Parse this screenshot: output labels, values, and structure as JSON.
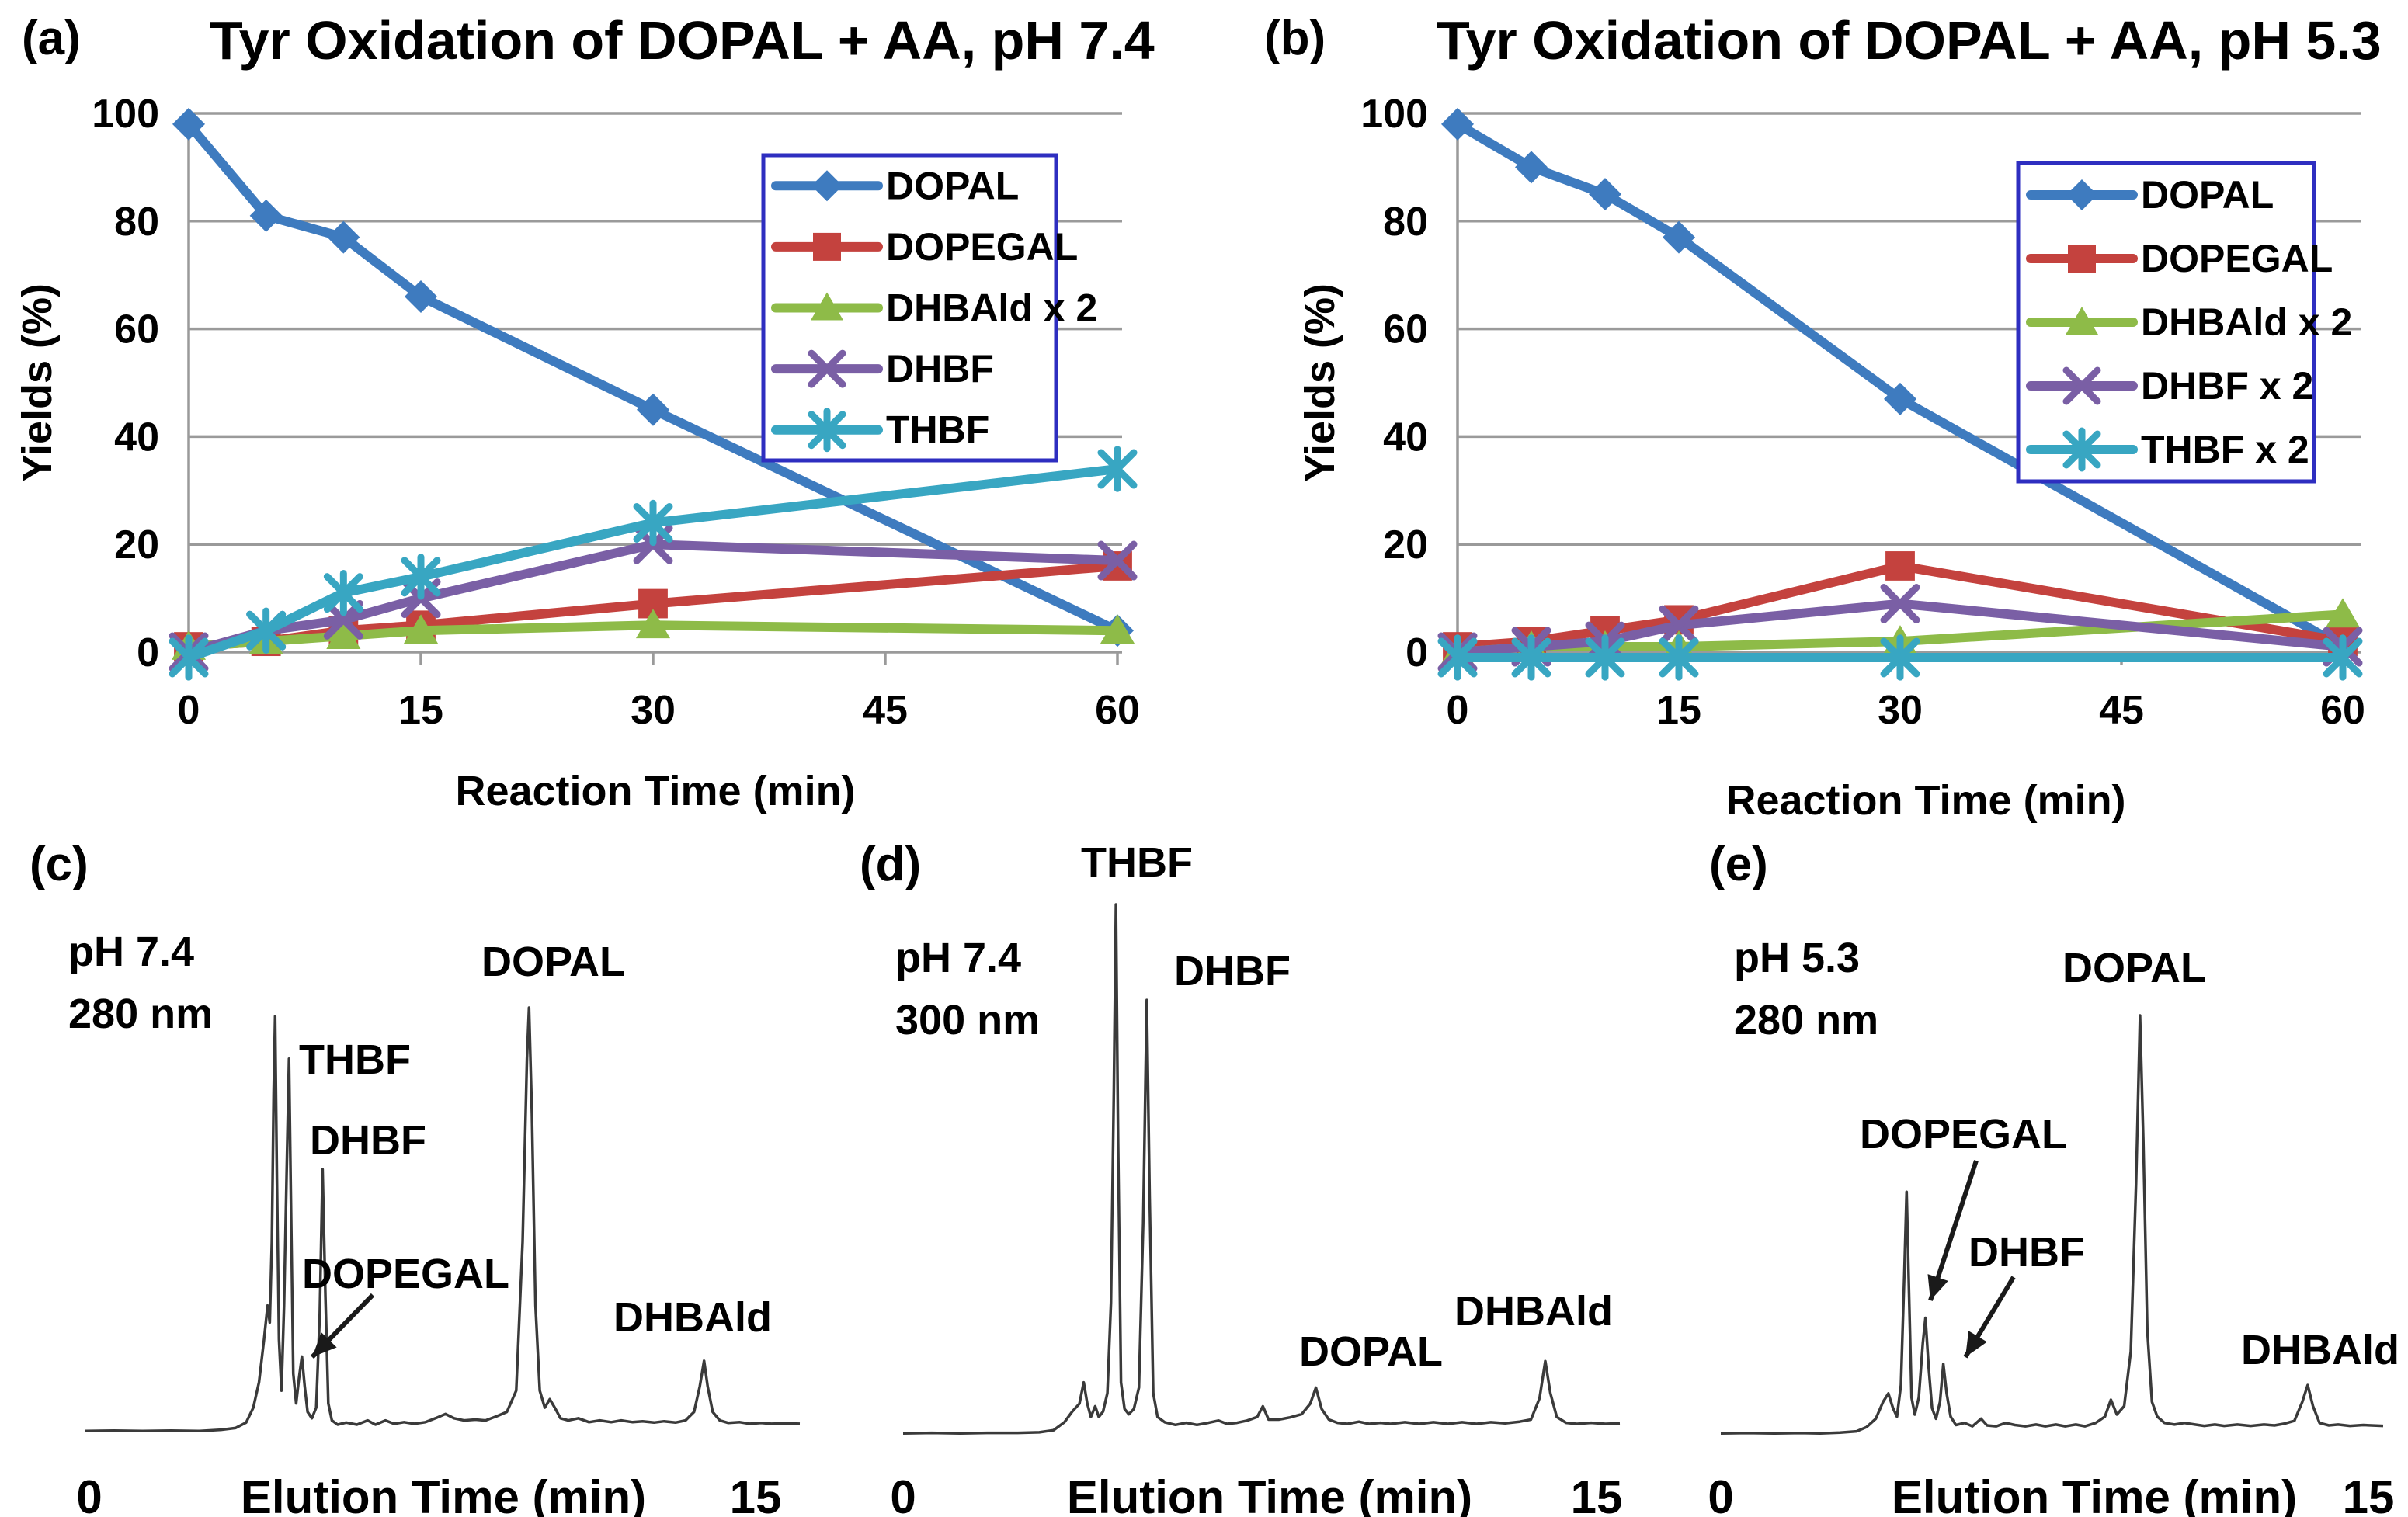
{
  "figure": {
    "panels": [
      {
        "id": "a",
        "label": "(a)"
      },
      {
        "id": "b",
        "label": "(b)"
      },
      {
        "id": "c",
        "label": "(c)"
      },
      {
        "id": "d",
        "label": "(d)"
      },
      {
        "id": "e",
        "label": "(e)"
      }
    ]
  },
  "colors": {
    "dopal_blue": "#3E7BBF",
    "dopegal_red": "#C4423E",
    "dhbald_green": "#8EBB48",
    "dhbf_purple": "#7A5FA5",
    "thbf_cyan": "#38A6C2",
    "gridline_gray": "#9A9A9A",
    "legend_border_blue": "#2E2EC0",
    "trace_black": "#3A3A3A"
  },
  "chart_data": [
    {
      "type": "line",
      "panel": "a",
      "title": "Tyr Oxidation of DOPAL + AA, pH 7.4",
      "xlabel": "Reaction Time (min)",
      "ylabel": "Yields (%)",
      "x_values_min": [
        0,
        5,
        10,
        15,
        30,
        60
      ],
      "xticks": [
        0,
        15,
        30,
        45,
        60
      ],
      "yticks": [
        0,
        20,
        40,
        60,
        80,
        100
      ],
      "xlim": [
        0,
        60
      ],
      "ylim": [
        0,
        100
      ],
      "grid": true,
      "legend_position": "top-right",
      "series": [
        {
          "name": "DOPAL",
          "marker": "diamond",
          "color_key": "dopal_blue",
          "values": [
            98,
            81,
            77,
            66,
            45,
            4
          ]
        },
        {
          "name": "DOPEGAL",
          "marker": "square",
          "color_key": "dopegal_red",
          "values": [
            1,
            2,
            4,
            5,
            9,
            16
          ]
        },
        {
          "name": "DHBAld x 2",
          "marker": "triangle",
          "color_key": "dhbald_green",
          "values": [
            1,
            2,
            3,
            4,
            5,
            4
          ]
        },
        {
          "name": "DHBF",
          "marker": "x",
          "color_key": "dhbf_purple",
          "values": [
            0,
            4,
            6,
            10,
            20,
            17
          ]
        },
        {
          "name": "THBF",
          "marker": "asterisk",
          "color_key": "thbf_cyan",
          "values": [
            -1,
            4,
            11,
            14,
            24,
            34
          ]
        }
      ]
    },
    {
      "type": "line",
      "panel": "b",
      "title": "Tyr Oxidation of DOPAL + AA, pH 5.3",
      "xlabel": "Reaction Time (min)",
      "ylabel": "Yields (%)",
      "x_values_min": [
        0,
        5,
        10,
        15,
        30,
        60
      ],
      "xticks": [
        0,
        15,
        30,
        45,
        60
      ],
      "yticks": [
        0,
        20,
        40,
        60,
        80,
        100
      ],
      "xlim": [
        0,
        60
      ],
      "ylim": [
        0,
        100
      ],
      "grid": true,
      "legend_position": "top-right",
      "series": [
        {
          "name": "DOPAL",
          "marker": "diamond",
          "color_key": "dopal_blue",
          "values": [
            98,
            90,
            85,
            77,
            47,
            1
          ]
        },
        {
          "name": "DOPEGAL",
          "marker": "square",
          "color_key": "dopegal_red",
          "values": [
            1,
            2,
            4,
            6,
            16,
            2
          ]
        },
        {
          "name": "DHBAld x 2",
          "marker": "triangle",
          "color_key": "dhbald_green",
          "values": [
            0,
            1,
            1,
            1,
            2,
            7
          ]
        },
        {
          "name": "DHBF x 2",
          "marker": "x",
          "color_key": "dhbf_purple",
          "values": [
            0,
            1,
            2,
            5,
            9,
            1
          ]
        },
        {
          "name": "THBF x 2",
          "marker": "asterisk",
          "color_key": "thbf_cyan",
          "values": [
            -1,
            -1,
            -1,
            -1,
            -1,
            -1
          ]
        }
      ]
    },
    {
      "type": "line",
      "subtype": "chromatogram",
      "panel": "c",
      "condition_ph": "pH 7.4",
      "condition_wavelength": "280 nm",
      "xlabel": "Elution Time (min)",
      "xtick_start": "0",
      "xtick_end": "15",
      "xlim": [
        0,
        15
      ],
      "peaks": [
        {
          "name": "THBF",
          "elution_time_min": 4.3,
          "rel_height": 88
        },
        {
          "name": "DHBF",
          "elution_time_min": 5.0,
          "rel_height": 62
        },
        {
          "name": "DOPEGAL",
          "elution_time_min": 4.6,
          "rel_height": 18
        },
        {
          "name": "DOPAL",
          "elution_time_min": 9.3,
          "rel_height": 100
        },
        {
          "name": "DHBAld",
          "elution_time_min": 13.0,
          "rel_height": 17
        }
      ],
      "trace": [
        [
          0,
          0.5
        ],
        [
          4,
          0.6
        ],
        [
          8,
          0.5
        ],
        [
          12,
          0.6
        ],
        [
          16,
          0.5
        ],
        [
          19,
          0.8
        ],
        [
          21,
          1.2
        ],
        [
          22.5,
          2.5
        ],
        [
          23.5,
          6
        ],
        [
          24.3,
          12
        ],
        [
          25,
          22
        ],
        [
          25.5,
          30
        ],
        [
          25.8,
          26
        ],
        [
          26.1,
          45
        ],
        [
          26.35,
          80
        ],
        [
          26.55,
          98
        ],
        [
          26.8,
          60
        ],
        [
          27.1,
          22
        ],
        [
          27.45,
          10
        ],
        [
          27.8,
          30
        ],
        [
          28.15,
          60
        ],
        [
          28.5,
          88
        ],
        [
          28.8,
          50
        ],
        [
          29.1,
          14
        ],
        [
          29.5,
          7
        ],
        [
          29.9,
          13
        ],
        [
          30.3,
          18
        ],
        [
          30.7,
          11
        ],
        [
          31.1,
          5
        ],
        [
          31.7,
          3.5
        ],
        [
          32.3,
          6
        ],
        [
          32.8,
          28
        ],
        [
          33.2,
          62
        ],
        [
          33.6,
          32
        ],
        [
          34,
          7
        ],
        [
          34.5,
          3
        ],
        [
          35.3,
          2
        ],
        [
          36.5,
          2.5
        ],
        [
          38,
          2
        ],
        [
          39.5,
          3
        ],
        [
          40.6,
          2
        ],
        [
          42,
          3
        ],
        [
          43.2,
          2.2
        ],
        [
          44.6,
          2.6
        ],
        [
          46,
          2.2
        ],
        [
          47.6,
          2.6
        ],
        [
          49,
          3.5
        ],
        [
          50.4,
          4.5
        ],
        [
          51.6,
          3.5
        ],
        [
          53,
          3
        ],
        [
          54.6,
          3.2
        ],
        [
          56,
          3
        ],
        [
          57.6,
          4
        ],
        [
          59,
          5
        ],
        [
          60.3,
          10
        ],
        [
          61.2,
          45
        ],
        [
          61.8,
          88
        ],
        [
          62.1,
          100
        ],
        [
          62.5,
          75
        ],
        [
          63,
          30
        ],
        [
          63.6,
          10
        ],
        [
          64.3,
          6
        ],
        [
          65,
          8
        ],
        [
          65.7,
          6
        ],
        [
          66.5,
          3.5
        ],
        [
          67.6,
          3
        ],
        [
          69,
          3.5
        ],
        [
          70.5,
          2.6
        ],
        [
          72,
          3
        ],
        [
          73.6,
          2.6
        ],
        [
          75,
          3
        ],
        [
          76.6,
          2.6
        ],
        [
          78,
          2.8
        ],
        [
          79.6,
          2.5
        ],
        [
          81,
          2.8
        ],
        [
          82.6,
          2.5
        ],
        [
          84,
          3
        ],
        [
          85.2,
          5
        ],
        [
          86,
          11
        ],
        [
          86.6,
          17
        ],
        [
          87.1,
          11
        ],
        [
          87.8,
          5
        ],
        [
          88.8,
          3
        ],
        [
          90,
          2.4
        ],
        [
          91.6,
          2.6
        ],
        [
          93,
          2.2
        ],
        [
          94.6,
          2.4
        ],
        [
          96,
          2.2
        ],
        [
          98,
          2.3
        ],
        [
          100,
          2.2
        ]
      ]
    },
    {
      "type": "line",
      "subtype": "chromatogram",
      "panel": "d",
      "condition_ph": "pH 7.4",
      "condition_wavelength": "300 nm",
      "xlabel": "Elution Time (min)",
      "xtick_start": "0",
      "xtick_end": "15",
      "xlim": [
        0,
        15
      ],
      "peaks": [
        {
          "name": "THBF",
          "elution_time_min": 4.5,
          "rel_height": 100
        },
        {
          "name": "DHBF",
          "elution_time_min": 5.1,
          "rel_height": 82
        },
        {
          "name": "DOPAL",
          "elution_time_min": 8.7,
          "rel_height": 9
        },
        {
          "name": "DHBAld",
          "elution_time_min": 13.5,
          "rel_height": 14
        }
      ],
      "trace": [
        [
          0,
          0.4
        ],
        [
          4,
          0.5
        ],
        [
          8,
          0.4
        ],
        [
          12,
          0.5
        ],
        [
          16,
          0.5
        ],
        [
          19,
          0.6
        ],
        [
          21,
          1
        ],
        [
          22.5,
          2.5
        ],
        [
          23.6,
          4.5
        ],
        [
          24.6,
          6
        ],
        [
          25.2,
          10
        ],
        [
          25.7,
          6
        ],
        [
          26.2,
          3.5
        ],
        [
          26.8,
          5.5
        ],
        [
          27.3,
          3.5
        ],
        [
          27.9,
          4.5
        ],
        [
          28.5,
          8
        ],
        [
          29,
          25
        ],
        [
          29.4,
          65
        ],
        [
          29.7,
          100
        ],
        [
          30,
          55
        ],
        [
          30.4,
          10
        ],
        [
          30.9,
          5
        ],
        [
          31.5,
          4
        ],
        [
          32.2,
          5
        ],
        [
          32.9,
          9
        ],
        [
          33.5,
          40
        ],
        [
          34,
          82
        ],
        [
          34.4,
          45
        ],
        [
          34.9,
          8
        ],
        [
          35.5,
          3.5
        ],
        [
          36.5,
          2.5
        ],
        [
          38,
          2
        ],
        [
          39.5,
          2.4
        ],
        [
          41,
          2
        ],
        [
          42.6,
          2.4
        ],
        [
          44,
          2.8
        ],
        [
          45.2,
          2.2
        ],
        [
          46.6,
          2.4
        ],
        [
          48,
          2.8
        ],
        [
          49.4,
          3.5
        ],
        [
          50.2,
          5.5
        ],
        [
          51,
          3
        ],
        [
          52.4,
          3
        ],
        [
          54,
          3.4
        ],
        [
          55.6,
          4
        ],
        [
          56.8,
          6
        ],
        [
          57.6,
          9
        ],
        [
          58.4,
          5
        ],
        [
          59.4,
          3
        ],
        [
          60.6,
          2.4
        ],
        [
          62,
          2.2
        ],
        [
          63.6,
          2.6
        ],
        [
          65,
          2.2
        ],
        [
          66.6,
          2.4
        ],
        [
          68,
          2.2
        ],
        [
          70,
          2.5
        ],
        [
          72,
          2.2
        ],
        [
          74,
          2.5
        ],
        [
          76,
          2.2
        ],
        [
          78,
          2.5
        ],
        [
          80,
          2.2
        ],
        [
          82,
          2.5
        ],
        [
          84,
          2.3
        ],
        [
          86,
          2.6
        ],
        [
          87.6,
          3
        ],
        [
          88.8,
          7
        ],
        [
          89.6,
          14
        ],
        [
          90.3,
          8
        ],
        [
          91.2,
          3.5
        ],
        [
          92.5,
          2.4
        ],
        [
          94,
          2.2
        ],
        [
          96,
          2.4
        ],
        [
          98,
          2.2
        ],
        [
          100,
          2.3
        ]
      ]
    },
    {
      "type": "line",
      "subtype": "chromatogram",
      "panel": "e",
      "condition_ph": "pH 5.3",
      "condition_wavelength": "280 nm",
      "xlabel": "Elution Time (min)",
      "xtick_start": "0",
      "xtick_end": "15",
      "xlim": [
        0,
        15
      ],
      "peaks": [
        {
          "name": "DOPEGAL",
          "elution_time_min": 4.7,
          "rel_height": 28
        },
        {
          "name": "DHBF",
          "elution_time_min": 5.1,
          "rel_height": 17
        },
        {
          "name": "DOPAL",
          "elution_time_min": 9.5,
          "rel_height": 100
        },
        {
          "name": "DHBAld",
          "elution_time_min": 13.3,
          "rel_height": 12
        }
      ],
      "trace": [
        [
          0,
          0.5
        ],
        [
          4,
          0.6
        ],
        [
          8,
          0.5
        ],
        [
          12,
          0.6
        ],
        [
          15,
          0.5
        ],
        [
          18,
          0.7
        ],
        [
          20.5,
          1
        ],
        [
          22,
          2
        ],
        [
          23.4,
          4
        ],
        [
          24.5,
          8
        ],
        [
          25.3,
          10
        ],
        [
          26,
          6.5
        ],
        [
          26.6,
          4.5
        ],
        [
          27.2,
          12
        ],
        [
          27.7,
          38
        ],
        [
          28.05,
          58
        ],
        [
          28.4,
          35
        ],
        [
          28.8,
          9
        ],
        [
          29.3,
          5
        ],
        [
          29.9,
          9
        ],
        [
          30.5,
          22
        ],
        [
          30.9,
          28
        ],
        [
          31.4,
          16
        ],
        [
          31.9,
          6.5
        ],
        [
          32.5,
          4
        ],
        [
          33.1,
          8
        ],
        [
          33.6,
          17
        ],
        [
          34.1,
          10
        ],
        [
          34.7,
          4.5
        ],
        [
          35.5,
          2.5
        ],
        [
          36.8,
          3
        ],
        [
          38,
          2.2
        ],
        [
          39.3,
          4
        ],
        [
          40.2,
          2.4
        ],
        [
          41.6,
          2.2
        ],
        [
          43,
          3
        ],
        [
          44.4,
          2.5
        ],
        [
          46,
          2.2
        ],
        [
          47.6,
          2.6
        ],
        [
          49,
          2.2
        ],
        [
          50.6,
          2.6
        ],
        [
          52,
          2.2
        ],
        [
          53.6,
          2.6
        ],
        [
          55,
          2.2
        ],
        [
          56.6,
          3
        ],
        [
          58,
          4.5
        ],
        [
          58.9,
          8.5
        ],
        [
          59.8,
          5
        ],
        [
          60.9,
          7
        ],
        [
          61.9,
          20
        ],
        [
          62.7,
          60
        ],
        [
          63.3,
          100
        ],
        [
          63.8,
          70
        ],
        [
          64.4,
          25
        ],
        [
          65.1,
          8
        ],
        [
          65.9,
          4.5
        ],
        [
          67,
          3
        ],
        [
          68.5,
          2.6
        ],
        [
          70,
          3
        ],
        [
          71.6,
          2.6
        ],
        [
          73,
          2.3
        ],
        [
          74.6,
          2.6
        ],
        [
          76,
          2.3
        ],
        [
          78,
          2.6
        ],
        [
          80,
          2.3
        ],
        [
          82,
          2.6
        ],
        [
          83.6,
          2.4
        ],
        [
          85,
          2.8
        ],
        [
          86.6,
          3.5
        ],
        [
          87.8,
          8
        ],
        [
          88.6,
          12
        ],
        [
          89.4,
          7
        ],
        [
          90.4,
          3
        ],
        [
          91.8,
          2.4
        ],
        [
          93.2,
          2.6
        ],
        [
          95,
          2.3
        ],
        [
          97,
          2.5
        ],
        [
          100,
          2.3
        ]
      ]
    }
  ]
}
